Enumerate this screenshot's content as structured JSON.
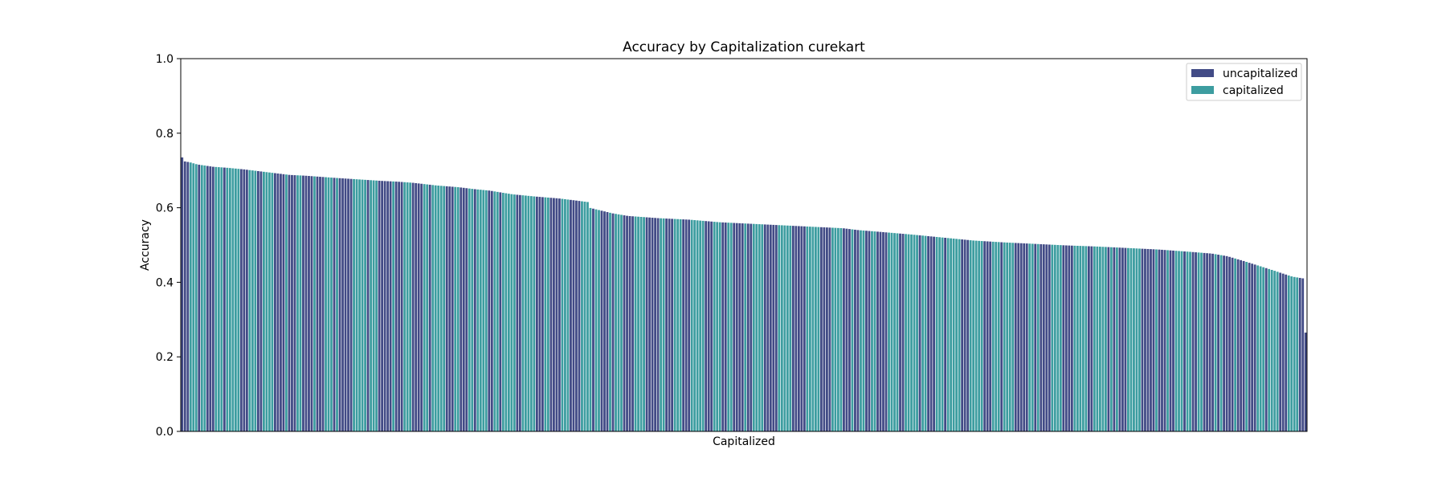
{
  "chart_data": {
    "type": "bar",
    "title": "Accuracy by Capitalization curekart",
    "xlabel": "Capitalized",
    "ylabel": "Accuracy",
    "ylim": [
      0,
      1.0
    ],
    "yticks": [
      "0.0",
      "0.2",
      "0.4",
      "0.6",
      "0.8",
      "1.0"
    ],
    "legend_position": "top-right",
    "grid": false,
    "series": [
      {
        "name": "uncapitalized",
        "color": "#424b86"
      },
      {
        "name": "capitalized",
        "color": "#3d9da0"
      }
    ],
    "bar_count": 400,
    "value_profile": [
      [
        0,
        0.735
      ],
      [
        1,
        0.725
      ],
      [
        10,
        0.722
      ],
      [
        20,
        0.716
      ],
      [
        40,
        0.71
      ],
      [
        60,
        0.707
      ],
      [
        80,
        0.703
      ],
      [
        100,
        0.698
      ],
      [
        120,
        0.693
      ],
      [
        140,
        0.688
      ],
      [
        160,
        0.686
      ],
      [
        180,
        0.683
      ],
      [
        200,
        0.68
      ],
      [
        230,
        0.676
      ],
      [
        260,
        0.672
      ],
      [
        280,
        0.67
      ],
      [
        300,
        0.667
      ],
      [
        330,
        0.66
      ],
      [
        360,
        0.655
      ],
      [
        380,
        0.65
      ],
      [
        400,
        0.646
      ],
      [
        430,
        0.636
      ],
      [
        460,
        0.63
      ],
      [
        490,
        0.625
      ],
      [
        510,
        0.62
      ],
      [
        529,
        0.615
      ],
      [
        530,
        0.6
      ],
      [
        560,
        0.585
      ],
      [
        580,
        0.578
      ],
      [
        620,
        0.572
      ],
      [
        660,
        0.568
      ],
      [
        700,
        0.561
      ],
      [
        740,
        0.557
      ],
      [
        780,
        0.553
      ],
      [
        820,
        0.549
      ],
      [
        860,
        0.545
      ],
      [
        880,
        0.54
      ],
      [
        910,
        0.535
      ],
      [
        950,
        0.528
      ],
      [
        990,
        0.52
      ],
      [
        1030,
        0.512
      ],
      [
        1070,
        0.507
      ],
      [
        1110,
        0.503
      ],
      [
        1150,
        0.499
      ],
      [
        1190,
        0.496
      ],
      [
        1230,
        0.492
      ],
      [
        1270,
        0.488
      ],
      [
        1310,
        0.482
      ],
      [
        1340,
        0.477
      ],
      [
        1360,
        0.47
      ],
      [
        1380,
        0.458
      ],
      [
        1400,
        0.445
      ],
      [
        1420,
        0.432
      ],
      [
        1430,
        0.425
      ],
      [
        1445,
        0.415
      ],
      [
        1460,
        0.41
      ],
      [
        1462,
        0.405
      ]
    ],
    "last_bar_value": 0.265
  }
}
